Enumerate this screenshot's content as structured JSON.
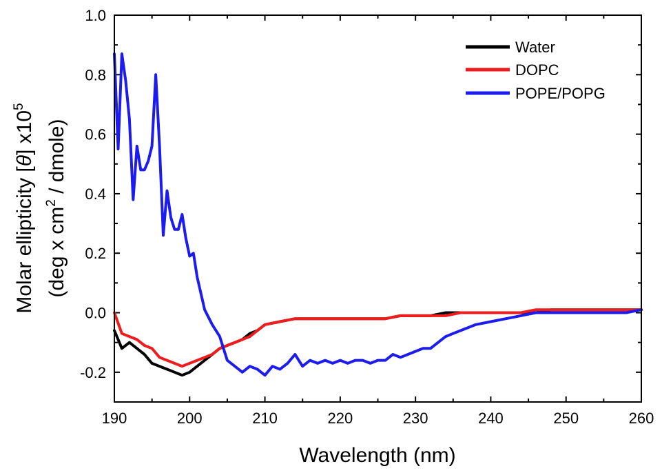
{
  "chart_data": {
    "type": "line",
    "xlabel": "Wavelength (nm)",
    "ylabel_line1_prefix": "Molar ellipticity [",
    "ylabel_theta": "θ",
    "ylabel_line1_suffix": "] x10",
    "ylabel_exponent": "5",
    "ylabel_line2_prefix": "(deg x cm",
    "ylabel_line2_exponent": "2",
    "ylabel_line2_suffix": " / dmole)",
    "xlim": [
      190,
      260
    ],
    "ylim": [
      -0.3,
      1.0
    ],
    "xticks": [
      "190",
      "200",
      "210",
      "220",
      "230",
      "240",
      "250",
      "260"
    ],
    "yticks": [
      "-0.2",
      "0.0",
      "0.2",
      "0.4",
      "0.6",
      "0.8",
      "1.0"
    ],
    "legend_position": "top-right",
    "series": [
      {
        "name": "Water",
        "color": "#000000",
        "x": [
          190,
          191,
          192,
          193,
          194,
          195,
          196,
          197,
          198,
          199,
          200,
          201,
          202,
          203,
          204,
          205,
          206,
          207,
          208,
          209,
          210,
          212,
          214,
          216,
          218,
          220,
          222,
          224,
          226,
          228,
          230,
          232,
          234,
          236,
          238,
          240,
          242,
          244,
          246,
          248,
          250,
          252,
          254,
          256,
          258,
          260
        ],
        "y": [
          -0.06,
          -0.12,
          -0.1,
          -0.12,
          -0.14,
          -0.17,
          -0.18,
          -0.19,
          -0.2,
          -0.21,
          -0.2,
          -0.18,
          -0.16,
          -0.14,
          -0.12,
          -0.11,
          -0.1,
          -0.09,
          -0.07,
          -0.06,
          -0.04,
          -0.03,
          -0.02,
          -0.02,
          -0.02,
          -0.02,
          -0.02,
          -0.02,
          -0.02,
          -0.01,
          -0.01,
          -0.01,
          0.0,
          0.0,
          0.0,
          0.0,
          0.0,
          0.0,
          0.0,
          0.01,
          0.01,
          0.01,
          0.01,
          0.01,
          0.01,
          0.01
        ]
      },
      {
        "name": "DOPC",
        "color": "#ee1c1c",
        "x": [
          190,
          191,
          192,
          193,
          194,
          195,
          196,
          197,
          198,
          199,
          200,
          201,
          202,
          203,
          204,
          205,
          206,
          207,
          208,
          209,
          210,
          212,
          214,
          216,
          218,
          220,
          222,
          224,
          226,
          228,
          230,
          232,
          234,
          236,
          238,
          240,
          242,
          244,
          246,
          248,
          250,
          252,
          254,
          256,
          258,
          260
        ],
        "y": [
          0.0,
          -0.07,
          -0.08,
          -0.09,
          -0.11,
          -0.12,
          -0.15,
          -0.16,
          -0.17,
          -0.18,
          -0.17,
          -0.16,
          -0.15,
          -0.14,
          -0.12,
          -0.11,
          -0.1,
          -0.09,
          -0.08,
          -0.06,
          -0.04,
          -0.03,
          -0.02,
          -0.02,
          -0.02,
          -0.02,
          -0.02,
          -0.02,
          -0.02,
          -0.01,
          -0.01,
          -0.01,
          -0.01,
          0.0,
          0.0,
          0.0,
          0.0,
          0.0,
          0.01,
          0.01,
          0.01,
          0.01,
          0.01,
          0.01,
          0.01,
          0.01
        ]
      },
      {
        "name": "POPE/POPG",
        "color": "#1c1cee",
        "x": [
          190,
          190.5,
          191,
          191.5,
          192,
          192.5,
          193,
          193.5,
          194,
          194.5,
          195,
          195.5,
          196,
          196.5,
          197,
          197.5,
          198,
          198.5,
          199,
          199.5,
          200,
          200.5,
          201,
          202,
          203,
          204,
          205,
          206,
          207,
          208,
          209,
          210,
          211,
          212,
          213,
          214,
          215,
          216,
          217,
          218,
          219,
          220,
          221,
          222,
          223,
          224,
          225,
          226,
          227,
          228,
          229,
          230,
          231,
          232,
          233,
          234,
          235,
          236,
          237,
          238,
          240,
          242,
          244,
          246,
          248,
          250,
          252,
          254,
          256,
          258,
          260
        ],
        "y": [
          0.87,
          0.55,
          0.87,
          0.78,
          0.65,
          0.38,
          0.56,
          0.48,
          0.48,
          0.51,
          0.56,
          0.8,
          0.56,
          0.26,
          0.41,
          0.32,
          0.28,
          0.28,
          0.33,
          0.25,
          0.19,
          0.2,
          0.12,
          0.01,
          -0.04,
          -0.08,
          -0.16,
          -0.18,
          -0.2,
          -0.18,
          -0.19,
          -0.21,
          -0.18,
          -0.19,
          -0.17,
          -0.14,
          -0.18,
          -0.16,
          -0.17,
          -0.16,
          -0.17,
          -0.16,
          -0.17,
          -0.16,
          -0.16,
          -0.17,
          -0.16,
          -0.16,
          -0.14,
          -0.15,
          -0.14,
          -0.13,
          -0.12,
          -0.12,
          -0.1,
          -0.08,
          -0.07,
          -0.06,
          -0.05,
          -0.04,
          -0.03,
          -0.02,
          -0.01,
          0.0,
          0.0,
          0.0,
          0.0,
          0.0,
          0.0,
          0.0,
          0.01
        ]
      }
    ]
  }
}
